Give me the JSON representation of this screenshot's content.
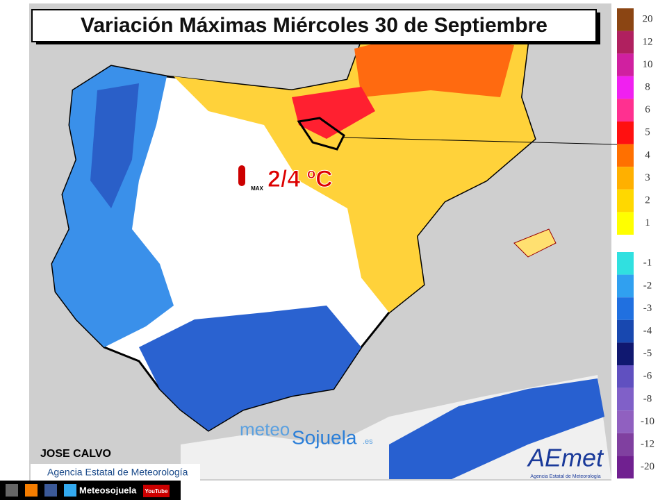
{
  "header": {
    "title": "Variación Máximas Miércoles 30 de Septiembre"
  },
  "annotation": {
    "value": "2/4 ºC",
    "icon_label": "MAX"
  },
  "legend": {
    "items": [
      {
        "label": 20,
        "color": "#8b4513"
      },
      {
        "label": 12,
        "color": "#b0205f"
      },
      {
        "label": 10,
        "color": "#d020a0"
      },
      {
        "label": 8,
        "color": "#f020f0"
      },
      {
        "label": 6,
        "color": "#ff3090"
      },
      {
        "label": 5,
        "color": "#ff1010"
      },
      {
        "label": 4,
        "color": "#ff7000"
      },
      {
        "label": 3,
        "color": "#ffb000"
      },
      {
        "label": 2,
        "color": "#ffd800"
      },
      {
        "label": 1,
        "color": "#ffff00"
      },
      {
        "label": -1,
        "color": "#30e0e0"
      },
      {
        "label": -2,
        "color": "#30a0f0"
      },
      {
        "label": -3,
        "color": "#2070e0"
      },
      {
        "label": -4,
        "color": "#1848b0"
      },
      {
        "label": -5,
        "color": "#101870"
      },
      {
        "label": -6,
        "color": "#6050c0"
      },
      {
        "label": -8,
        "color": "#8060c8"
      },
      {
        "label": -10,
        "color": "#9060c0"
      },
      {
        "label": -12,
        "color": "#8040a0"
      },
      {
        "label": -20,
        "color": "#702090"
      }
    ]
  },
  "author": "JOSE CALVO",
  "source": "Agencia Estatal de Meteorología",
  "watermark": {
    "part1": "meteo",
    "part2": "Sojuela",
    "suffix": ".es"
  },
  "logo": {
    "name": "AEmet",
    "subtitle": "Agencia Estatal de Meteorología"
  },
  "footer": {
    "account": "Meteosojuela",
    "youtube": "YouTube"
  }
}
